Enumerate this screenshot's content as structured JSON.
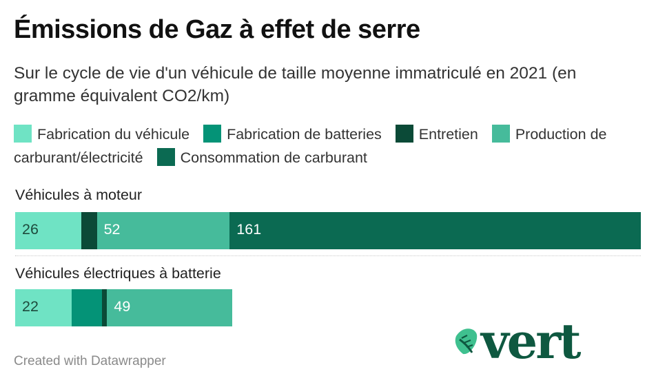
{
  "title": "Émissions de Gaz à effet de serre",
  "subtitle": "Sur le cycle de vie d'un véhicule de taille moyenne immatriculé en 2021 (en gramme équivalent CO2/km)",
  "credit": "Created with Datawrapper",
  "logo_text": "vert",
  "chart_data": {
    "type": "bar",
    "stacked": true,
    "orientation": "horizontal",
    "title": "Émissions de Gaz à effet de serre",
    "subtitle": "Sur le cycle de vie d'un véhicule de taille moyenne immatriculé en 2021 (en gramme équivalent CO2/km)",
    "categories": [
      "Véhicules à moteur",
      "Véhicules électriques à batterie"
    ],
    "xlim": [
      0,
      245
    ],
    "legend_position": "top",
    "series": [
      {
        "name": "Fabrication du véhicule",
        "color": "#6fe3c4",
        "values": [
          26,
          22
        ],
        "labels": [
          "26",
          "22"
        ]
      },
      {
        "name": "Fabrication de batteries",
        "color": "#049377",
        "values": [
          0,
          12
        ],
        "labels": [
          "",
          ""
        ]
      },
      {
        "name": "Entretien",
        "color": "#0b4a37",
        "values": [
          6,
          2
        ],
        "labels": [
          "",
          ""
        ]
      },
      {
        "name": "Production de carburant/électricité",
        "color": "#46bb9b",
        "values": [
          52,
          49
        ],
        "labels": [
          "52",
          "49"
        ]
      },
      {
        "name": "Consommation de carburant",
        "color": "#0b6a52",
        "values": [
          161,
          0
        ],
        "labels": [
          "161",
          ""
        ]
      }
    ]
  }
}
